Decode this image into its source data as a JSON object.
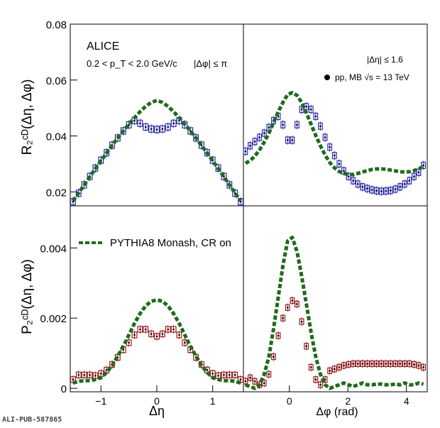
{
  "figure": {
    "source_tag": "ALI-PUB-587865",
    "experiment": "ALICE",
    "kin_cut_pt": "0.2 < p_T < 2.0 GeV/c",
    "phi_range": "|Δφ| ≤ π",
    "eta_range": "|Δη| ≤ 1.6",
    "data_legend": "pp, MB √s = 13 TeV",
    "model_legend": "PYTHIA8 Monash, CR on",
    "colors": {
      "r2_data": "#2a2ab5",
      "p2_data": "#9c1a1a",
      "model": "#1e6b1e"
    }
  },
  "chart_data": [
    {
      "panel": "top-left",
      "type": "line",
      "ylabel": "R₂ᶜᴰ(Δη, Δφ)",
      "xlim": [
        -1.55,
        1.55
      ],
      "ylim": [
        0.015,
        0.08
      ],
      "yticks": [
        0.02,
        0.04,
        0.06,
        0.08
      ],
      "series": [
        {
          "name": "pp, MB √s = 13 TeV",
          "style": "boxes",
          "x": [
            -1.5,
            -1.4,
            -1.3,
            -1.2,
            -1.1,
            -1.0,
            -0.9,
            -0.8,
            -0.7,
            -0.6,
            -0.5,
            -0.4,
            -0.3,
            -0.2,
            -0.1,
            0.0,
            0.1,
            0.2,
            0.3,
            0.4,
            0.5,
            0.6,
            0.7,
            0.8,
            0.9,
            1.0,
            1.1,
            1.2,
            1.3,
            1.4,
            1.5
          ],
          "y": [
            0.0165,
            0.0195,
            0.0225,
            0.0255,
            0.0285,
            0.0313,
            0.034,
            0.0367,
            0.0393,
            0.0418,
            0.044,
            0.0455,
            0.0445,
            0.0432,
            0.0425,
            0.0423,
            0.0425,
            0.0432,
            0.0445,
            0.0455,
            0.044,
            0.0418,
            0.0393,
            0.0367,
            0.034,
            0.0313,
            0.0285,
            0.0255,
            0.0225,
            0.0195,
            0.0165
          ]
        },
        {
          "name": "PYTHIA8 Monash, CR on",
          "style": "dashed",
          "x": [
            -1.5,
            -1.4,
            -1.3,
            -1.2,
            -1.1,
            -1.0,
            -0.9,
            -0.8,
            -0.7,
            -0.6,
            -0.5,
            -0.4,
            -0.3,
            -0.2,
            -0.1,
            0.0,
            0.1,
            0.2,
            0.3,
            0.4,
            0.5,
            0.6,
            0.7,
            0.8,
            0.9,
            1.0,
            1.1,
            1.2,
            1.3,
            1.4,
            1.5
          ],
          "y": [
            0.0168,
            0.0196,
            0.0225,
            0.0254,
            0.0283,
            0.0311,
            0.0339,
            0.0366,
            0.0393,
            0.0418,
            0.0442,
            0.0465,
            0.0487,
            0.0506,
            0.052,
            0.0527,
            0.052,
            0.0506,
            0.0487,
            0.0465,
            0.0442,
            0.0418,
            0.0393,
            0.0366,
            0.0339,
            0.0311,
            0.0283,
            0.0254,
            0.0225,
            0.0196,
            0.0168
          ]
        }
      ]
    },
    {
      "panel": "top-right",
      "type": "line",
      "xlim": [
        -1.57,
        4.71
      ],
      "ylim": [
        0.015,
        0.08
      ],
      "series": [
        {
          "name": "pp, MB √s = 13 TeV",
          "style": "boxes",
          "x": [
            -1.5,
            -1.34,
            -1.18,
            -1.02,
            -0.86,
            -0.7,
            -0.54,
            -0.38,
            -0.22,
            -0.06,
            0.1,
            0.26,
            0.42,
            0.58,
            0.74,
            0.9,
            1.06,
            1.22,
            1.38,
            1.54,
            1.7,
            1.86,
            2.02,
            2.18,
            2.34,
            2.5,
            2.66,
            2.82,
            2.98,
            3.14,
            3.3,
            3.46,
            3.62,
            3.78,
            3.94,
            4.1,
            4.26,
            4.42,
            4.58
          ],
          "y": [
            0.0345,
            0.0365,
            0.038,
            0.0395,
            0.041,
            0.043,
            0.0455,
            0.047,
            0.044,
            0.0385,
            0.0385,
            0.044,
            0.0495,
            0.0505,
            0.0495,
            0.047,
            0.0435,
            0.0395,
            0.036,
            0.033,
            0.03,
            0.0275,
            0.0255,
            0.024,
            0.0228,
            0.0218,
            0.0212,
            0.0207,
            0.0204,
            0.0202,
            0.0203,
            0.0205,
            0.021,
            0.0218,
            0.0228,
            0.024,
            0.0255,
            0.027,
            0.0295
          ]
        },
        {
          "name": "PYTHIA8 Monash, CR on",
          "style": "dashed",
          "x": [
            -1.5,
            -1.34,
            -1.18,
            -1.02,
            -0.86,
            -0.7,
            -0.54,
            -0.38,
            -0.22,
            -0.06,
            0.1,
            0.26,
            0.42,
            0.58,
            0.74,
            0.9,
            1.06,
            1.22,
            1.38,
            1.54,
            1.7,
            1.86,
            2.02,
            2.18,
            2.34,
            2.5,
            2.66,
            2.82,
            2.98,
            3.14,
            3.3,
            3.46,
            3.62,
            3.78,
            3.94,
            4.1,
            4.26,
            4.42,
            4.58
          ],
          "y": [
            0.0302,
            0.0312,
            0.0328,
            0.035,
            0.0378,
            0.041,
            0.0448,
            0.0487,
            0.052,
            0.0548,
            0.0555,
            0.0545,
            0.052,
            0.0482,
            0.0442,
            0.0402,
            0.0365,
            0.0332,
            0.0305,
            0.0286,
            0.0273,
            0.0266,
            0.0262,
            0.0262,
            0.0266,
            0.0271,
            0.0276,
            0.028,
            0.0282,
            0.0282,
            0.0281,
            0.0278,
            0.0275,
            0.0272,
            0.0271,
            0.0272,
            0.0276,
            0.0283,
            0.029
          ]
        }
      ]
    },
    {
      "panel": "bottom-left",
      "type": "line",
      "xlabel": "Δη",
      "ylabel": "P₂ᶜᴰ(Δη, Δφ)",
      "xlim": [
        -1.55,
        1.55
      ],
      "ylim": [
        -0.0001,
        0.0052
      ],
      "xticks": [
        -1,
        0,
        1
      ],
      "yticks": [
        0,
        0.002,
        0.004
      ],
      "series": [
        {
          "name": "pp, MB √s = 13 TeV",
          "style": "boxes",
          "x": [
            -1.5,
            -1.4,
            -1.3,
            -1.2,
            -1.1,
            -1.0,
            -0.9,
            -0.8,
            -0.7,
            -0.6,
            -0.5,
            -0.4,
            -0.3,
            -0.2,
            -0.1,
            0.0,
            0.1,
            0.2,
            0.3,
            0.4,
            0.5,
            0.6,
            0.7,
            0.8,
            0.9,
            1.0,
            1.1,
            1.2,
            1.3,
            1.4,
            1.5
          ],
          "y": [
            0.00025,
            0.00038,
            0.00038,
            0.00038,
            0.00036,
            0.00042,
            0.00052,
            0.00068,
            0.00088,
            0.0011,
            0.0013,
            0.00152,
            0.00168,
            0.00168,
            0.00155,
            0.00148,
            0.00155,
            0.00168,
            0.00168,
            0.00152,
            0.0013,
            0.0011,
            0.00088,
            0.00068,
            0.00052,
            0.00042,
            0.00036,
            0.00038,
            0.00038,
            0.00038,
            0.00025
          ]
        },
        {
          "name": "PYTHIA8 Monash, CR on",
          "style": "dashed",
          "x": [
            -1.5,
            -1.4,
            -1.3,
            -1.2,
            -1.1,
            -1.0,
            -0.9,
            -0.8,
            -0.7,
            -0.6,
            -0.5,
            -0.4,
            -0.3,
            -0.2,
            -0.1,
            0.0,
            0.1,
            0.2,
            0.3,
            0.4,
            0.5,
            0.6,
            0.7,
            0.8,
            0.9,
            1.0,
            1.1,
            1.2,
            1.3,
            1.4,
            1.5
          ],
          "y": [
            0.00015,
            0.0002,
            0.00022,
            0.00022,
            0.00025,
            0.0003,
            0.00045,
            0.00065,
            0.00092,
            0.0012,
            0.00152,
            0.00185,
            0.00213,
            0.00235,
            0.00248,
            0.00252,
            0.00248,
            0.00235,
            0.00213,
            0.00185,
            0.00152,
            0.0012,
            0.00092,
            0.00065,
            0.00045,
            0.0003,
            0.00025,
            0.00022,
            0.00022,
            0.0002,
            0.00015
          ]
        }
      ]
    },
    {
      "panel": "bottom-right",
      "type": "line",
      "xlabel": "Δφ (rad)",
      "xlim": [
        -1.57,
        4.71
      ],
      "ylim": [
        -0.0001,
        0.0052
      ],
      "xticks": [
        0,
        2,
        4
      ],
      "series": [
        {
          "name": "pp, MB √s = 13 TeV",
          "style": "boxes",
          "x": [
            -1.5,
            -1.34,
            -1.18,
            -1.02,
            -0.86,
            -0.7,
            -0.54,
            -0.38,
            -0.22,
            -0.06,
            0.1,
            0.26,
            0.42,
            0.58,
            0.74,
            0.9,
            1.06,
            1.22,
            1.38,
            1.54,
            1.7,
            1.86,
            2.02,
            2.18,
            2.34,
            2.5,
            2.66,
            2.82,
            2.98,
            3.14,
            3.3,
            3.46,
            3.62,
            3.78,
            3.94,
            4.1,
            4.26,
            4.42,
            4.58
          ],
          "y": [
            0.0002,
            0.0003,
            0.0002,
            0.0001,
            0.00015,
            0.0004,
            0.0009,
            0.0015,
            0.002,
            0.0023,
            0.0025,
            0.0024,
            0.0019,
            0.0012,
            0.0006,
            0.00025,
            0.0001,
            0.00025,
            0.0005,
            0.00055,
            0.0006,
            0.00065,
            0.00068,
            0.0007,
            0.0007,
            0.0007,
            0.0007,
            0.0007,
            0.0007,
            0.0007,
            0.0007,
            0.0007,
            0.0007,
            0.0007,
            0.0007,
            0.0007,
            0.00068,
            0.00065,
            0.0006
          ]
        },
        {
          "name": "PYTHIA8 Monash, CR on",
          "style": "dashed",
          "x": [
            -1.5,
            -1.34,
            -1.18,
            -1.02,
            -0.86,
            -0.7,
            -0.54,
            -0.38,
            -0.22,
            -0.06,
            0.1,
            0.26,
            0.42,
            0.58,
            0.74,
            0.9,
            1.06,
            1.22,
            1.38,
            1.54,
            1.7,
            1.86,
            2.02,
            2.18,
            2.34,
            2.5,
            2.66,
            2.82,
            2.98,
            3.14,
            3.3,
            3.46,
            3.62,
            3.78,
            3.94,
            4.1,
            4.26,
            4.42,
            4.58
          ],
          "y": [
            0.0001,
            5e-05,
            0.0,
            0.0001,
            0.0004,
            0.0009,
            0.0017,
            0.0026,
            0.0035,
            0.0042,
            0.0043,
            0.0039,
            0.0032,
            0.0024,
            0.0016,
            0.0009,
            0.0004,
            0.0001,
            0.0,
            5e-05,
            0.0001,
            0.00015,
            0.0001,
            5e-05,
            0.0001,
            0.00015,
            0.0001,
            0.0001,
            0.00012,
            0.00012,
            0.0001,
            0.0001,
            0.00012,
            0.0001,
            0.00015,
            0.0001,
            0.0001,
            0.00015,
            0.00012
          ]
        }
      ]
    }
  ]
}
